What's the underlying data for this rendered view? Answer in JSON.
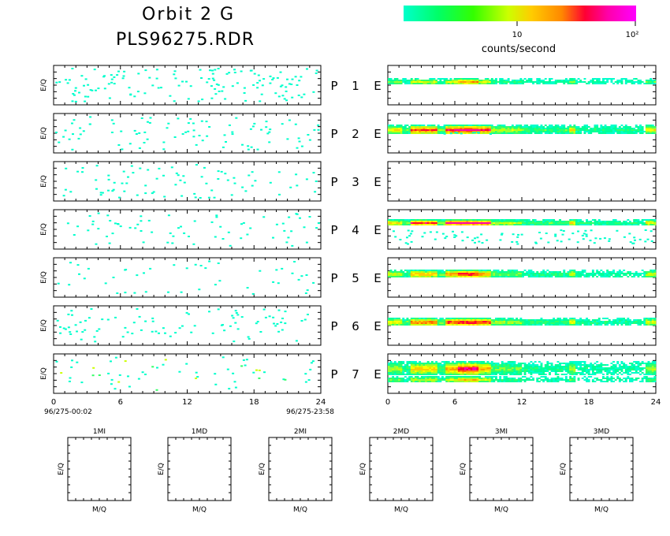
{
  "header": {
    "title": "Orbit  2  G",
    "subtitle": "PLS96275.RDR"
  },
  "colorbar": {
    "label": "counts/second",
    "tick_labels": [
      "10",
      "10²"
    ],
    "colors": [
      "#00ffcc",
      "#00ff66",
      "#33ff00",
      "#ccff00",
      "#ffcc00",
      "#ff8800",
      "#ff0033",
      "#ff00aa",
      "#ff00ff"
    ]
  },
  "chart_data": {
    "type": "heatmap",
    "y_axis_label": "E/Q",
    "x_ticks": [
      "0",
      "6",
      "12",
      "18",
      "24"
    ],
    "xlim": [
      0,
      24
    ],
    "start_time": "96/275-00:02",
    "end_time": "96/275-23:58",
    "row_labels": [
      {
        "p": "P",
        "n": "1",
        "e": "E"
      },
      {
        "p": "P",
        "n": "2",
        "e": "E"
      },
      {
        "p": "P",
        "n": "3",
        "e": "E"
      },
      {
        "p": "P",
        "n": "4",
        "e": "E"
      },
      {
        "p": "P",
        "n": "5",
        "e": "E"
      },
      {
        "p": "P",
        "n": "6",
        "e": "E"
      },
      {
        "p": "P",
        "n": "7",
        "e": "E"
      }
    ],
    "small_panels": {
      "titles": [
        "1MI",
        "1MD",
        "2MI",
        "2MD",
        "3MI",
        "3MD"
      ],
      "xlabel": "M/Q",
      "ylabel": "E/Q"
    }
  }
}
